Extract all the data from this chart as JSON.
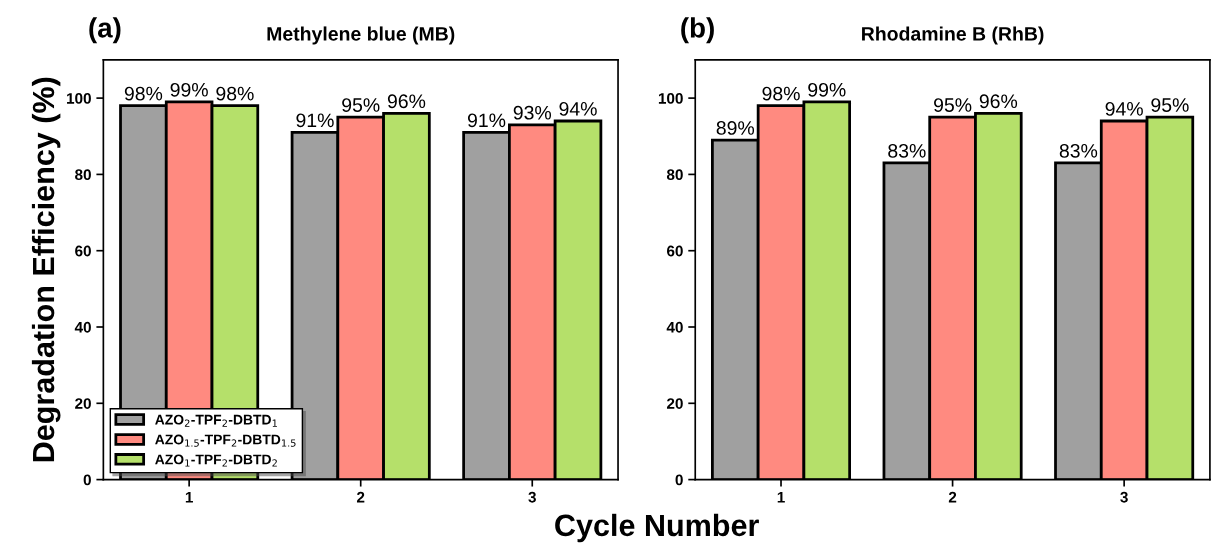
{
  "chart_data": [
    {
      "type": "bar",
      "title": "Methylene blue (MB)",
      "xlabel": "Cycle Number",
      "ylabel": "Degradation Efficiency (%)",
      "annotations": [
        "(a)"
      ],
      "categories": [
        "1",
        "2",
        "3"
      ],
      "series": [
        {
          "name": "AZO$_{2}$-TPF$_{2}$-DBTD$_{1}$",
          "color": "#a0a0a0",
          "values": [
            98,
            91,
            91
          ],
          "value_labels": [
            "98%",
            "91%",
            "91%"
          ]
        },
        {
          "name": "AZO$_{1.5}$-TPF$_{2}$-DBTD$_{1.5}$",
          "color": "#ff8a80",
          "values": [
            99,
            95,
            93
          ],
          "value_labels": [
            "99%",
            "95%",
            "93%"
          ]
        },
        {
          "name": "AZO$_{1}$-TPF$_{2}$-DBTD$_{2}$",
          "color": "#b5e06a",
          "values": [
            98,
            96,
            94
          ],
          "value_labels": [
            "98%",
            "96%",
            "94%"
          ]
        }
      ],
      "ylim": [
        0,
        110
      ],
      "yticks": [
        0,
        20,
        40,
        60,
        80,
        100
      ],
      "legend": "bottom left",
      "grid": false
    },
    {
      "type": "bar",
      "title": "Rhodamine B (RhB)",
      "annotations": [
        "(b)"
      ],
      "categories": [
        "1",
        "2",
        "3"
      ],
      "series": [
        {
          "color": "#a0a0a0",
          "values": [
            89,
            83,
            83
          ],
          "value_labels": [
            "89%",
            "83%",
            "83%"
          ]
        },
        {
          "color": "#ff8a80",
          "values": [
            98,
            95,
            94
          ],
          "value_labels": [
            "98%",
            "95%",
            "94%"
          ]
        },
        {
          "color": "#b5e06a",
          "values": [
            99,
            96,
            95
          ],
          "value_labels": [
            "99%",
            "96%",
            "95%"
          ]
        }
      ],
      "ylim": [
        0,
        110
      ],
      "yticks": [
        0,
        20,
        40,
        60,
        80,
        100
      ],
      "grid": false
    }
  ]
}
